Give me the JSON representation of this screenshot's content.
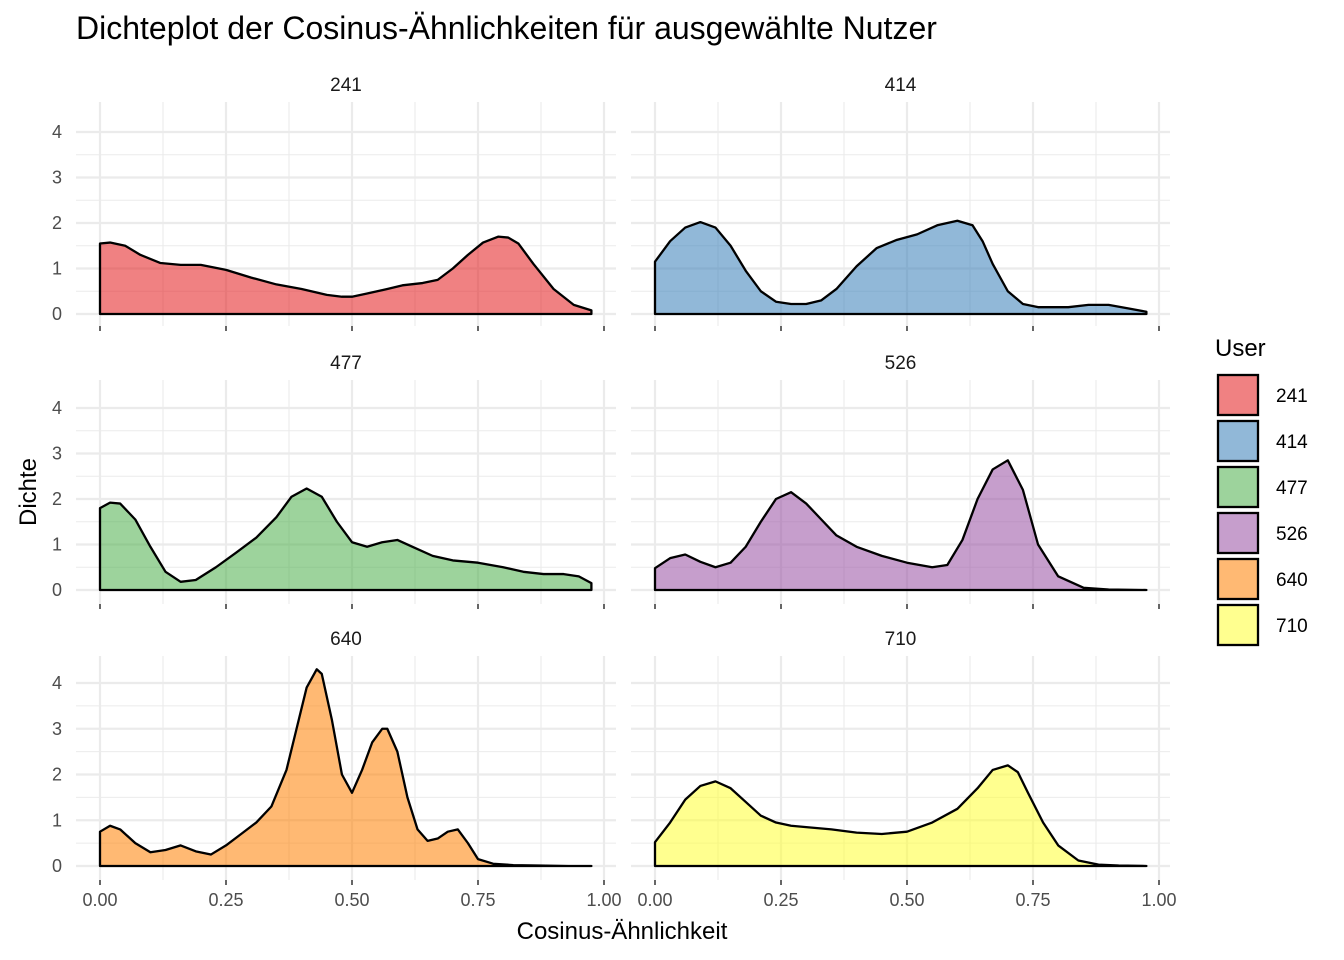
{
  "chart_data": {
    "type": "area",
    "chart_kind": "faceted density plot",
    "title": "Dichteplot der Cosinus-Ähnlichkeiten für ausgewählte Nutzer",
    "xlabel": "Cosinus-Ähnlichkeit",
    "ylabel": "Dichte",
    "xlim": [
      0,
      0.975
    ],
    "ylim": [
      0,
      4.5
    ],
    "x_ticks": [
      "0.00",
      "0.25",
      "0.50",
      "0.75",
      "1.00"
    ],
    "y_ticks": [
      "0",
      "1",
      "2",
      "3",
      "4"
    ],
    "grid": true,
    "layout": "3 rows x 2 columns",
    "legend": {
      "title": "User",
      "position": "right"
    },
    "series": [
      {
        "name": "241",
        "color": "#E41A1C",
        "x": [
          0,
          0.02,
          0.05,
          0.08,
          0.12,
          0.16,
          0.2,
          0.25,
          0.3,
          0.35,
          0.4,
          0.45,
          0.48,
          0.5,
          0.53,
          0.57,
          0.6,
          0.64,
          0.67,
          0.7,
          0.73,
          0.76,
          0.79,
          0.81,
          0.83,
          0.86,
          0.9,
          0.94,
          0.975
        ],
        "y": [
          1.55,
          1.57,
          1.5,
          1.3,
          1.12,
          1.08,
          1.08,
          0.97,
          0.8,
          0.65,
          0.55,
          0.42,
          0.38,
          0.38,
          0.45,
          0.55,
          0.63,
          0.68,
          0.75,
          1.0,
          1.3,
          1.57,
          1.7,
          1.68,
          1.55,
          1.1,
          0.55,
          0.2,
          0.08
        ]
      },
      {
        "name": "414",
        "color": "#377EB8",
        "x": [
          0,
          0.03,
          0.06,
          0.09,
          0.12,
          0.15,
          0.18,
          0.21,
          0.24,
          0.27,
          0.3,
          0.33,
          0.36,
          0.4,
          0.44,
          0.48,
          0.52,
          0.56,
          0.6,
          0.63,
          0.65,
          0.67,
          0.7,
          0.73,
          0.76,
          0.79,
          0.82,
          0.86,
          0.9,
          0.94,
          0.975
        ],
        "y": [
          1.15,
          1.6,
          1.9,
          2.02,
          1.9,
          1.5,
          0.95,
          0.5,
          0.27,
          0.22,
          0.22,
          0.3,
          0.55,
          1.05,
          1.45,
          1.63,
          1.75,
          1.95,
          2.05,
          1.95,
          1.6,
          1.1,
          0.5,
          0.22,
          0.15,
          0.15,
          0.15,
          0.2,
          0.2,
          0.12,
          0.05
        ]
      },
      {
        "name": "477",
        "color": "#4DAF4A",
        "x": [
          0,
          0.02,
          0.04,
          0.07,
          0.1,
          0.13,
          0.16,
          0.19,
          0.23,
          0.27,
          0.31,
          0.35,
          0.38,
          0.41,
          0.44,
          0.47,
          0.5,
          0.53,
          0.56,
          0.59,
          0.62,
          0.66,
          0.7,
          0.75,
          0.8,
          0.84,
          0.88,
          0.92,
          0.95,
          0.975
        ],
        "y": [
          1.8,
          1.92,
          1.9,
          1.55,
          0.95,
          0.4,
          0.18,
          0.22,
          0.5,
          0.82,
          1.15,
          1.6,
          2.05,
          2.23,
          2.05,
          1.5,
          1.05,
          0.95,
          1.05,
          1.1,
          0.95,
          0.75,
          0.65,
          0.6,
          0.5,
          0.4,
          0.35,
          0.35,
          0.3,
          0.15
        ]
      },
      {
        "name": "526",
        "color": "#984EA3",
        "x": [
          0,
          0.03,
          0.06,
          0.09,
          0.12,
          0.15,
          0.18,
          0.21,
          0.24,
          0.27,
          0.3,
          0.33,
          0.36,
          0.4,
          0.45,
          0.5,
          0.55,
          0.58,
          0.61,
          0.64,
          0.67,
          0.7,
          0.73,
          0.76,
          0.8,
          0.85,
          0.9,
          0.975
        ],
        "y": [
          0.48,
          0.7,
          0.78,
          0.62,
          0.5,
          0.6,
          0.95,
          1.5,
          2.0,
          2.15,
          1.9,
          1.55,
          1.2,
          0.95,
          0.75,
          0.6,
          0.5,
          0.55,
          1.1,
          2.0,
          2.65,
          2.85,
          2.2,
          1.0,
          0.3,
          0.05,
          0.01,
          0
        ]
      },
      {
        "name": "640",
        "color": "#FF7F00",
        "x": [
          0,
          0.02,
          0.04,
          0.07,
          0.1,
          0.13,
          0.16,
          0.19,
          0.22,
          0.25,
          0.28,
          0.31,
          0.34,
          0.37,
          0.39,
          0.41,
          0.43,
          0.44,
          0.46,
          0.48,
          0.5,
          0.52,
          0.54,
          0.56,
          0.57,
          0.59,
          0.61,
          0.63,
          0.65,
          0.67,
          0.69,
          0.71,
          0.73,
          0.75,
          0.78,
          0.82,
          0.87,
          0.93,
          0.975
        ],
        "y": [
          0.75,
          0.88,
          0.8,
          0.5,
          0.3,
          0.35,
          0.45,
          0.32,
          0.25,
          0.45,
          0.7,
          0.95,
          1.3,
          2.1,
          3.0,
          3.9,
          4.3,
          4.2,
          3.2,
          2.0,
          1.6,
          2.1,
          2.7,
          3.0,
          3.0,
          2.5,
          1.5,
          0.8,
          0.55,
          0.6,
          0.75,
          0.8,
          0.5,
          0.15,
          0.05,
          0.02,
          0.01,
          0,
          0
        ]
      },
      {
        "name": "710",
        "color": "#FFFF33",
        "x": [
          0,
          0.03,
          0.06,
          0.09,
          0.12,
          0.15,
          0.18,
          0.21,
          0.24,
          0.27,
          0.3,
          0.35,
          0.4,
          0.45,
          0.5,
          0.55,
          0.6,
          0.64,
          0.67,
          0.7,
          0.72,
          0.74,
          0.77,
          0.8,
          0.84,
          0.88,
          0.92,
          0.975
        ],
        "y": [
          0.52,
          0.95,
          1.45,
          1.75,
          1.85,
          1.7,
          1.4,
          1.1,
          0.95,
          0.88,
          0.85,
          0.8,
          0.73,
          0.7,
          0.75,
          0.95,
          1.25,
          1.7,
          2.1,
          2.2,
          2.05,
          1.6,
          0.95,
          0.45,
          0.12,
          0.03,
          0.01,
          0
        ]
      }
    ]
  }
}
